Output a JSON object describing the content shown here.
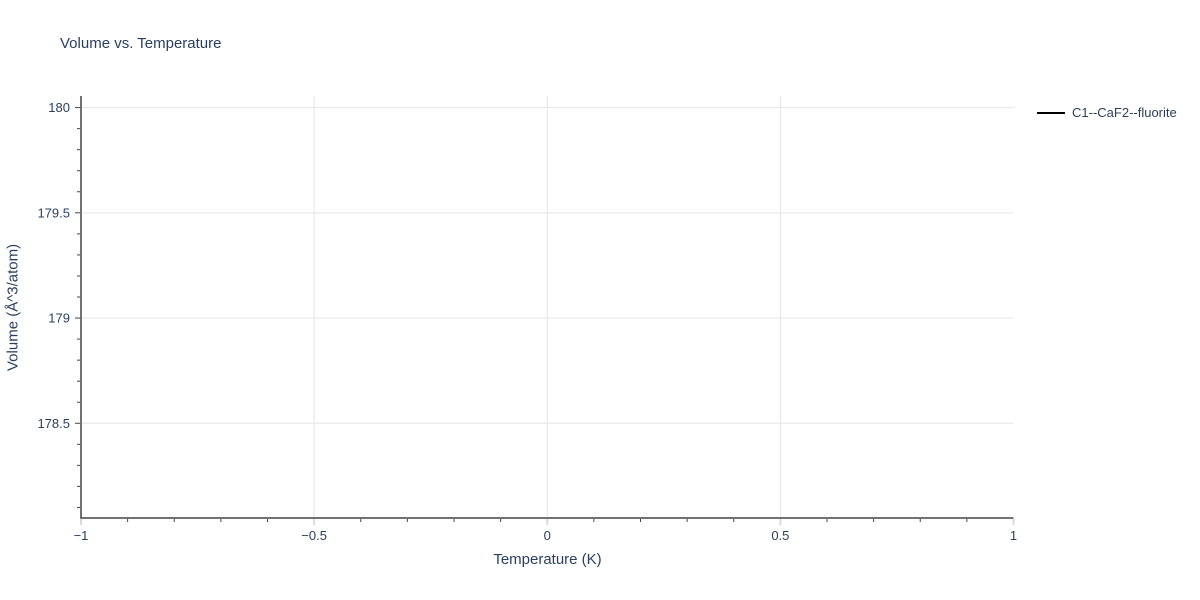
{
  "page": {
    "background": "#ffffff"
  },
  "chart": {
    "title": "Volume vs. Temperature",
    "x_axis_title": "Temperature (K)",
    "y_axis_title": "Volume (Å^3/atom)",
    "legend": {
      "items": [
        {
          "label": "C1--CaF2--fluorite",
          "swatch_color": "#000000",
          "swatch_style": "line"
        }
      ]
    }
  },
  "chart_data": {
    "type": "line",
    "title": "Volume vs. Temperature",
    "xlabel": "Temperature (K)",
    "ylabel": "Volume (Å^3/atom)",
    "xlim": [
      -1,
      1
    ],
    "ylim": [
      178.05,
      180.055
    ],
    "x_ticks": [
      -1,
      -0.5,
      0,
      0.5,
      1
    ],
    "x_tick_labels": [
      "−1",
      "−0.5",
      "0",
      "0.5",
      "1"
    ],
    "y_ticks": [
      178.5,
      179,
      179.5,
      180
    ],
    "y_tick_labels": [
      "178.5",
      "179",
      "179.5",
      "180"
    ],
    "minor_tick_step": 0.1,
    "grid": true,
    "legend_position": "outside-top-right",
    "series": [
      {
        "name": "C1--CaF2--fluorite",
        "color": "#000000",
        "x": [],
        "y": []
      }
    ],
    "colors": {
      "text": "#2a3f5f",
      "axis_line": "#444444",
      "gridline": "#e5e5e5",
      "major_tick": "#d9d9d9",
      "minor_tick": "#444444"
    }
  }
}
